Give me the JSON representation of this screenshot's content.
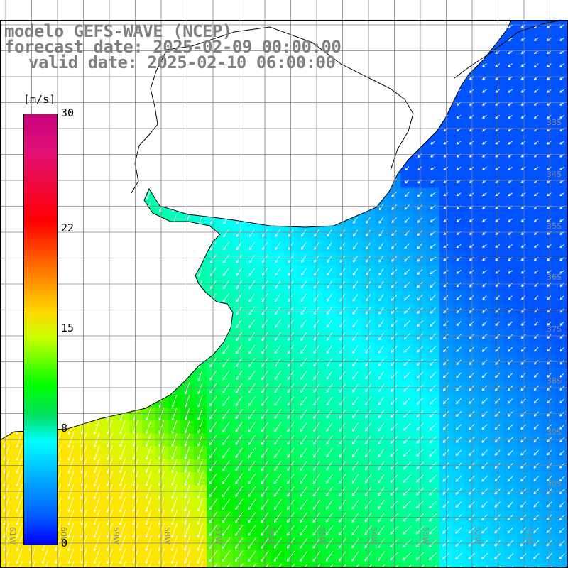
{
  "title": {
    "model": "modelo GEFS-WAVE (NCEP)",
    "forecast": "forecast date: 2025-02-09 00:00:00",
    "valid": "valid date: 2025-02-10 06:00:00"
  },
  "colorbar": {
    "unit": "[m/s]",
    "ticks": [
      "30",
      "22",
      "15",
      "8",
      "0"
    ],
    "tick_values": [
      30,
      22,
      15,
      8,
      0
    ],
    "range": [
      0,
      30
    ],
    "colors": [
      "#0000ff",
      "#00ffff",
      "#00ff00",
      "#ffff00",
      "#ff0000",
      "#c8007a"
    ]
  },
  "map": {
    "lon_labels": [
      "61W",
      "60W",
      "59W",
      "58W",
      "57W",
      "56W",
      "55W",
      "54W",
      "53W",
      "52W",
      "51W"
    ],
    "lat_labels": [
      "33S",
      "34S",
      "35S",
      "36S",
      "37S",
      "38S",
      "39S",
      "40S"
    ],
    "land_color": "#ffffff",
    "grid_color": "#808080",
    "vector_color": "#ffffff"
  }
}
